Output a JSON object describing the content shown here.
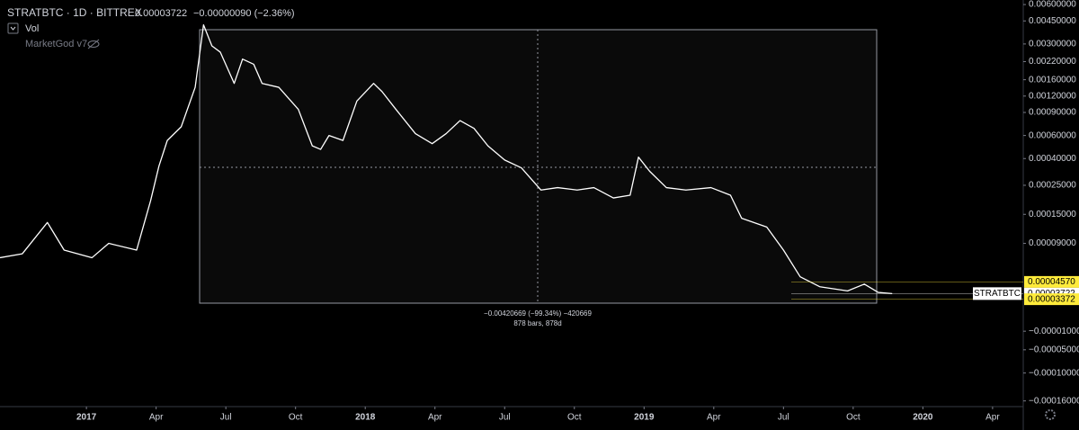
{
  "header": {
    "symbol": "STRATBTC · 1D · BITTREX",
    "price": "0.00003722",
    "change": "−0.00000090 (−2.36%)",
    "vol": "Vol",
    "indicator": "MarketGod v7"
  },
  "chart_data": {
    "type": "line",
    "x": [
      2016.69,
      2016.77,
      2016.86,
      2016.92,
      2017.02,
      2017.08,
      2017.18,
      2017.23,
      2017.26,
      2017.29,
      2017.34,
      2017.39,
      2017.42,
      2017.45,
      2017.48,
      2017.53,
      2017.56,
      2017.6,
      2017.63,
      2017.69,
      2017.76,
      2017.81,
      2017.84,
      2017.87,
      2017.92,
      2017.97,
      2018.03,
      2018.06,
      2018.11,
      2018.18,
      2018.24,
      2018.29,
      2018.34,
      2018.39,
      2018.44,
      2018.5,
      2018.56,
      2018.63,
      2018.69,
      2018.76,
      2018.82,
      2018.89,
      2018.95,
      2018.98,
      2019.02,
      2019.08,
      2019.15,
      2019.24,
      2019.31,
      2019.35,
      2019.44,
      2019.5,
      2019.56,
      2019.63,
      2019.73,
      2019.79,
      2019.84,
      2019.89
    ],
    "series": [
      {
        "name": "STRATBTC",
        "color": "#ffffff",
        "values": [
          7e-05,
          7.5e-05,
          0.00013,
          8e-05,
          7e-05,
          9e-05,
          8e-05,
          0.00019,
          0.00035,
          0.00055,
          0.0007,
          0.0014,
          0.0042,
          0.0029,
          0.0026,
          0.0015,
          0.0023,
          0.0021,
          0.0015,
          0.0014,
          0.00095,
          0.0005,
          0.00047,
          0.0006,
          0.00055,
          0.0011,
          0.0015,
          0.0013,
          0.00095,
          0.00062,
          0.00052,
          0.00062,
          0.00078,
          0.00068,
          0.0005,
          0.00039,
          0.00034,
          0.00023,
          0.00024,
          0.00023,
          0.00024,
          0.0002,
          0.00021,
          0.00041,
          0.00032,
          0.00024,
          0.00023,
          0.00024,
          0.00021,
          0.00014,
          0.00012,
          8e-05,
          5e-05,
          4.2e-05,
          3.9e-05,
          4.4e-05,
          3.8e-05,
          3.722e-05
        ]
      }
    ],
    "xlim": [
      2016.69,
      2020.36
    ],
    "xticks": [
      2017,
      {
        "value": 2017.25,
        "label": "Apr"
      },
      {
        "value": 2017.5,
        "label": "Jul"
      },
      {
        "value": 2017.75,
        "label": "Oct"
      },
      2018,
      {
        "value": 2018.25,
        "label": "Apr"
      },
      {
        "value": 2018.5,
        "label": "Jul"
      },
      {
        "value": 2018.75,
        "label": "Oct"
      },
      2019,
      {
        "value": 2019.25,
        "label": "Apr"
      },
      {
        "value": 2019.5,
        "label": "Jul"
      },
      {
        "value": 2019.75,
        "label": "Oct"
      },
      2020,
      {
        "value": 2020.25,
        "label": "Apr"
      }
    ],
    "log": true,
    "ylim": [
      3e-05,
      0.0065
    ],
    "yticks": [
      {
        "value": 0.006,
        "label": "0.00600000"
      },
      {
        "value": 0.0045,
        "label": "0.00450000"
      },
      {
        "value": 0.003,
        "label": "0.00300000"
      },
      {
        "value": 0.0022,
        "label": "0.00220000"
      },
      {
        "value": 0.0016,
        "label": "0.00160000"
      },
      {
        "value": 0.0012,
        "label": "0.00120000"
      },
      {
        "value": 0.0009,
        "label": "0.00090000"
      },
      {
        "value": 0.0006,
        "label": "0.00060000"
      },
      {
        "value": 0.0004,
        "label": "0.00040000"
      },
      {
        "value": 0.00025,
        "label": "0.00025000"
      },
      {
        "value": 0.00015,
        "label": "0.00015000"
      },
      {
        "value": 9e-05,
        "label": "0.00009000"
      }
    ],
    "y2lim": [
      -0.00018,
      0
    ],
    "y2ticks": [
      {
        "value": -1e-05,
        "label": "−0.00001000"
      },
      {
        "value": -5e-05,
        "label": "−0.00005000"
      },
      {
        "value": -0.0001,
        "label": "−0.00010000"
      },
      {
        "value": -0.00016,
        "label": "−0.00016000"
      }
    ],
    "price_labels": [
      {
        "value": 4.57e-05,
        "label": "0.00004570",
        "color": "#ffeb3b"
      },
      {
        "value": 3.722e-05,
        "label": "0.00003722",
        "color": "#ffffff"
      },
      {
        "value": 3.372e-05,
        "label": "0.00003372",
        "color": "#ffeb3b"
      }
    ],
    "measure": {
      "change": "−0.00420669 (−99.34%) −420669",
      "span": "878 bars, 878d"
    }
  }
}
